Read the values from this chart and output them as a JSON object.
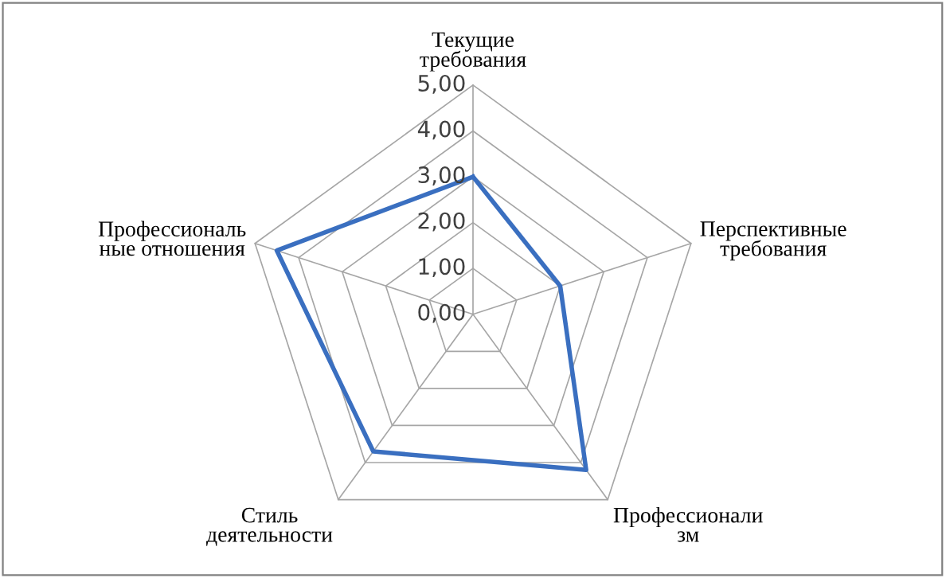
{
  "chart_data": {
    "type": "radar",
    "categories": [
      "Текущие\nтребования",
      "Перспективные\nтребования",
      "Профессионали\nзм",
      "Стиль\nдеятельности",
      "Профессиональ\nные отношения"
    ],
    "series": [
      {
        "color": "#3a6fc0",
        "values": [
          3.0,
          2.0,
          4.2,
          3.7,
          4.5
        ]
      }
    ],
    "ylim": [
      0,
      5
    ],
    "yticks": [
      {
        "value": 0,
        "label": "0,00"
      },
      {
        "value": 1,
        "label": "1,00"
      },
      {
        "value": 2,
        "label": "2,00"
      },
      {
        "value": 3,
        "label": "3,00"
      },
      {
        "value": 4,
        "label": "4,00"
      },
      {
        "value": 5,
        "label": "5,00"
      }
    ],
    "grid": true,
    "legend": false
  }
}
